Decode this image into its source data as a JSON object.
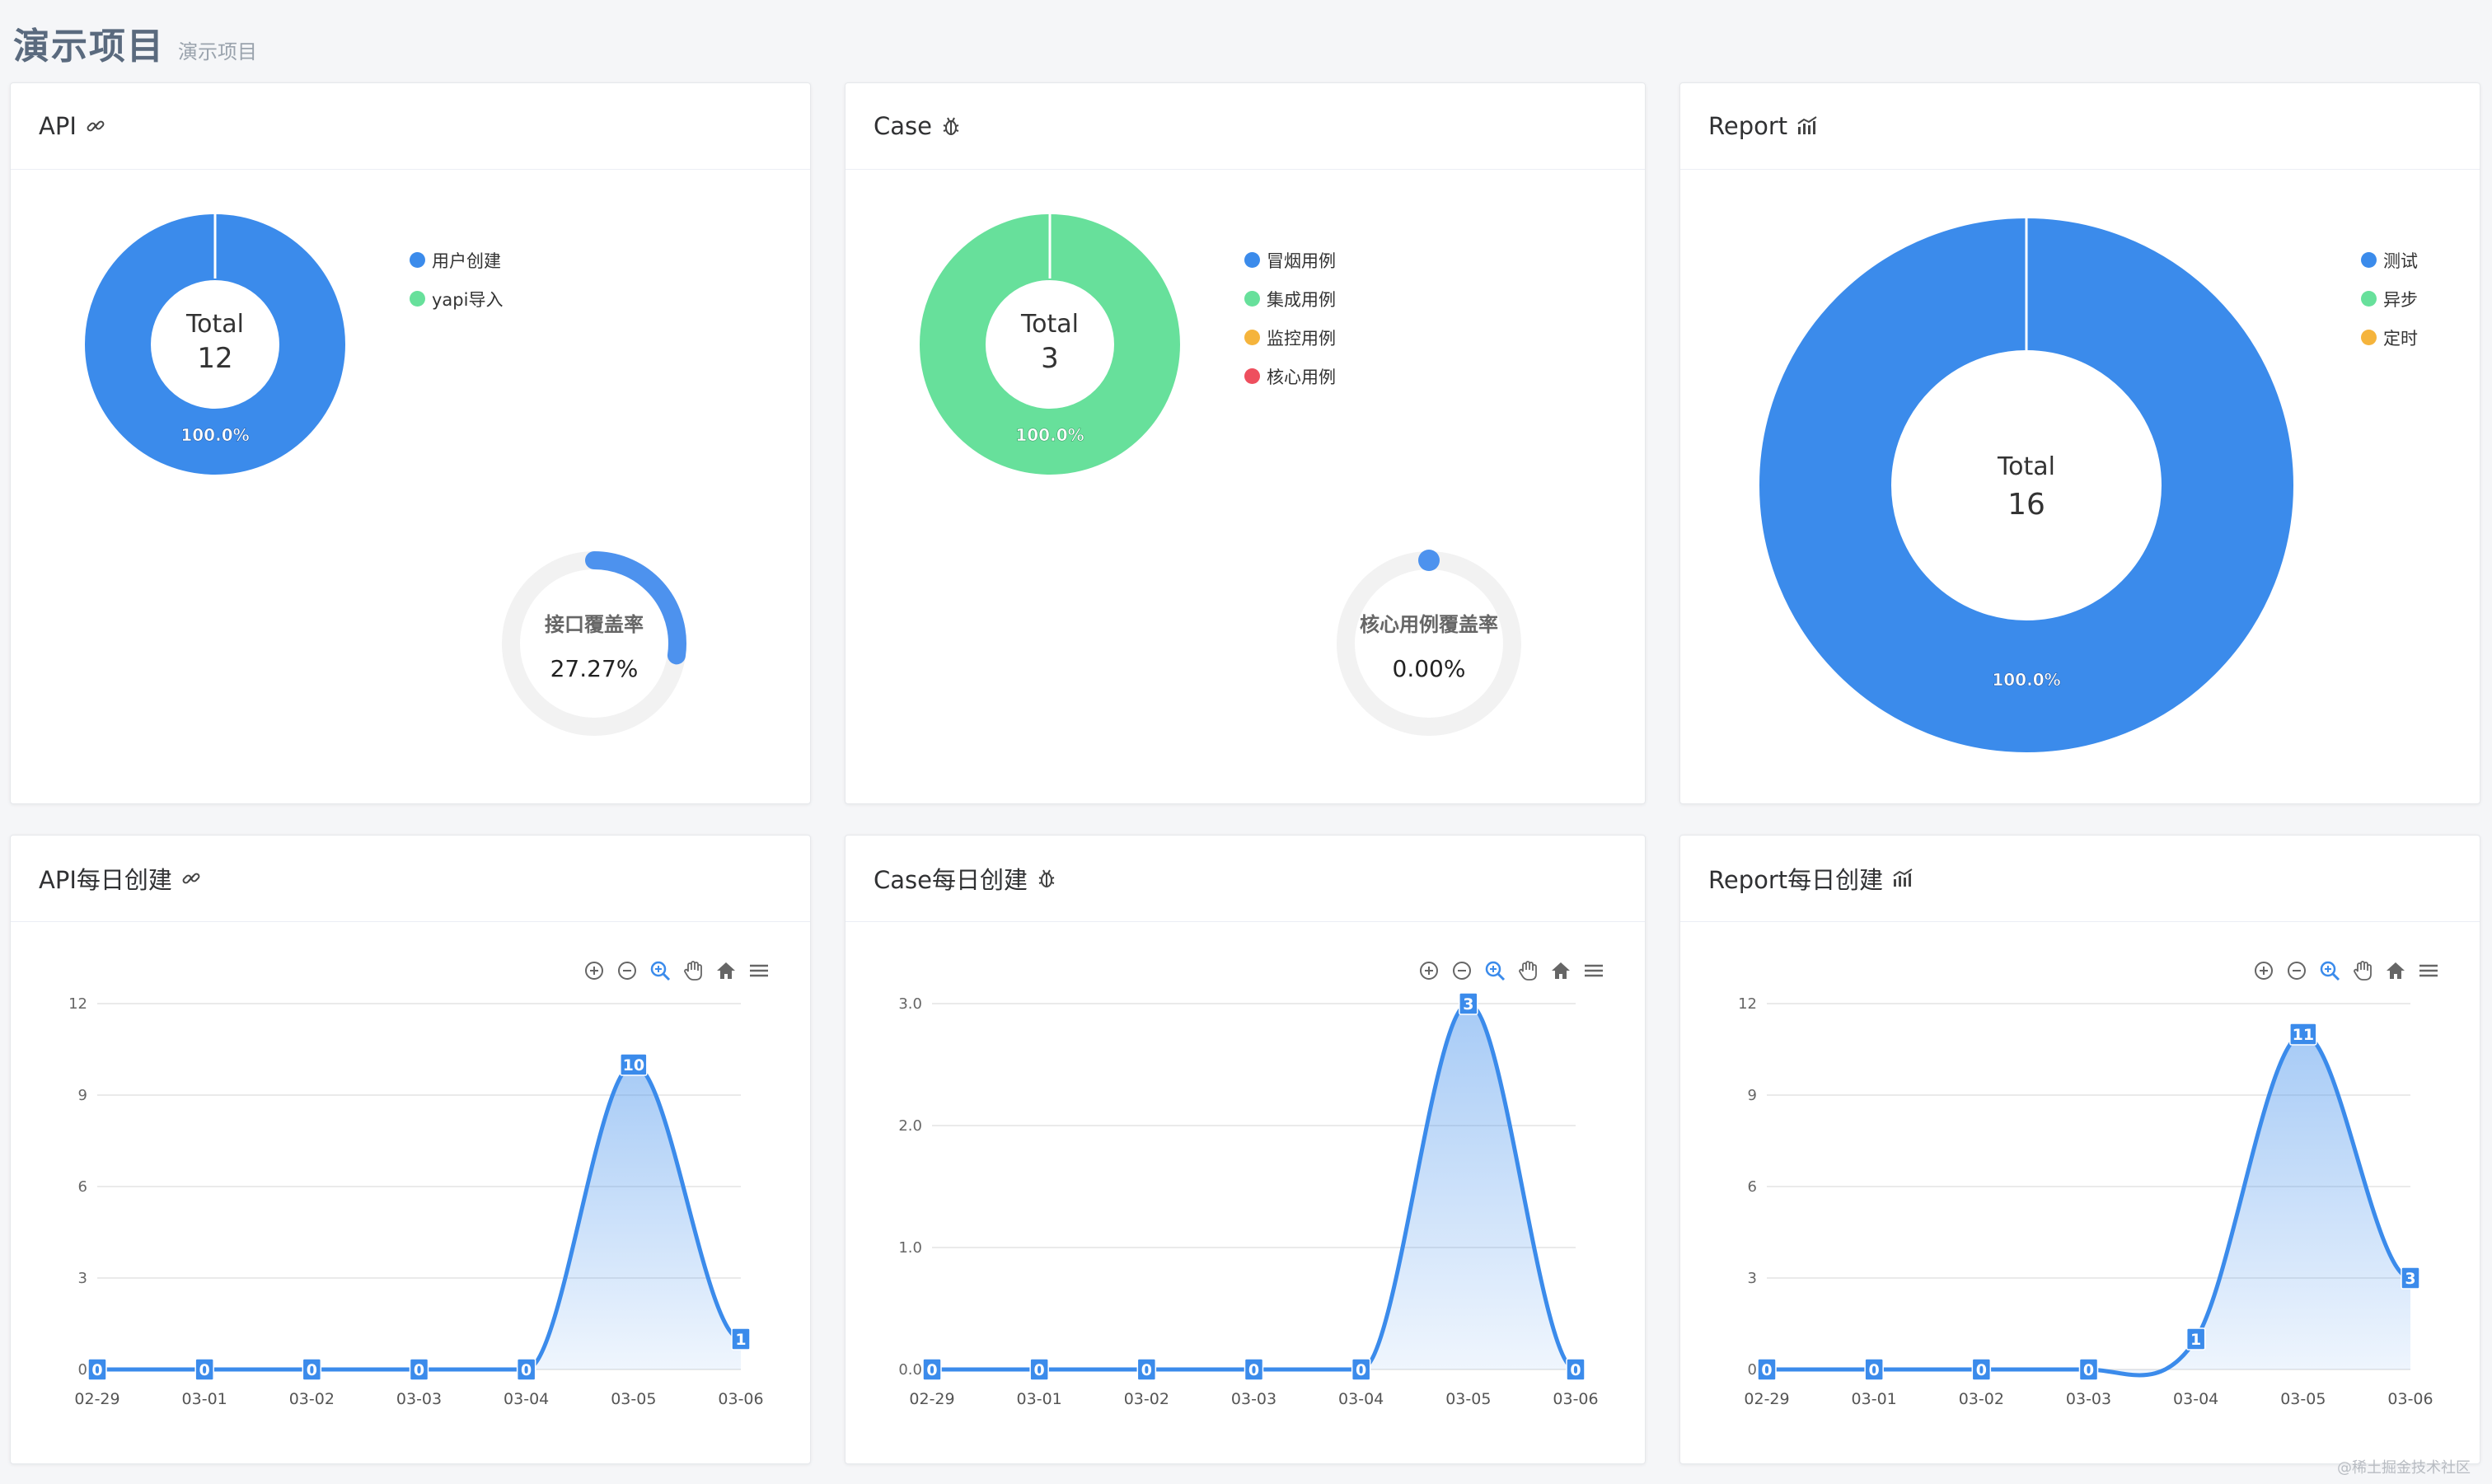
{
  "header": {
    "title": "演示项目",
    "subtitle": "演示项目"
  },
  "colors": {
    "blue": "#3b8beb",
    "green": "#67e09b",
    "orange": "#f5b43c",
    "red": "#ee4f5e",
    "ring_bg": "#f2f2f2"
  },
  "cards": {
    "api": {
      "title": "API",
      "total_label": "Total",
      "total_value": "12",
      "slice_percent": "100.0%",
      "legend": [
        "用户创建",
        "yapi导入"
      ],
      "coverage_label": "接口覆盖率",
      "coverage_value": "27.27%",
      "icon": "link-icon"
    },
    "case": {
      "title": "Case",
      "total_label": "Total",
      "total_value": "3",
      "slice_percent": "100.0%",
      "legend": [
        "冒烟用例",
        "集成用例",
        "监控用例",
        "核心用例"
      ],
      "coverage_label": "核心用例覆盖率",
      "coverage_value": "0.00%",
      "icon": "bug-icon"
    },
    "report": {
      "title": "Report",
      "total_label": "Total",
      "total_value": "16",
      "slice_percent": "100.0%",
      "legend": [
        "测试",
        "异步",
        "定时"
      ],
      "icon": "bar-chart-icon"
    },
    "api_daily": {
      "title": "API每日创建",
      "icon": "link-icon"
    },
    "case_daily": {
      "title": "Case每日创建",
      "icon": "bug-icon"
    },
    "report_daily": {
      "title": "Report每日创建",
      "icon": "bar-chart-icon"
    }
  },
  "chart_data": [
    {
      "type": "pie",
      "title": "API",
      "categories": [
        "用户创建",
        "yapi导入"
      ],
      "values": [
        12,
        0
      ],
      "center_label": "Total 12",
      "colors": [
        "#3b8beb",
        "#67e09b"
      ]
    },
    {
      "type": "pie",
      "title": "Case",
      "categories": [
        "冒烟用例",
        "集成用例",
        "监控用例",
        "核心用例"
      ],
      "values": [
        0,
        3,
        0,
        0
      ],
      "center_label": "Total 3",
      "colors": [
        "#3b8beb",
        "#67e09b",
        "#f5b43c",
        "#ee4f5e"
      ]
    },
    {
      "type": "pie",
      "title": "Report",
      "categories": [
        "测试",
        "异步",
        "定时"
      ],
      "values": [
        16,
        0,
        0
      ],
      "center_label": "Total 16",
      "colors": [
        "#3b8beb",
        "#67e09b",
        "#f5b43c"
      ]
    },
    {
      "type": "area",
      "title": "API每日创建",
      "categories": [
        "02-29",
        "03-01",
        "03-02",
        "03-03",
        "03-04",
        "03-05",
        "03-06"
      ],
      "values": [
        0,
        0,
        0,
        0,
        0,
        10,
        1
      ],
      "ylim": [
        0,
        12
      ],
      "yticks": [
        "0",
        "3",
        "6",
        "9",
        "12"
      ]
    },
    {
      "type": "area",
      "title": "Case每日创建",
      "categories": [
        "02-29",
        "03-01",
        "03-02",
        "03-03",
        "03-04",
        "03-05",
        "03-06"
      ],
      "values": [
        0,
        0,
        0,
        0,
        0,
        3,
        0
      ],
      "ylim": [
        0,
        3
      ],
      "yticks": [
        "0.0",
        "1.0",
        "2.0",
        "3.0"
      ]
    },
    {
      "type": "area",
      "title": "Report每日创建",
      "categories": [
        "02-29",
        "03-01",
        "03-02",
        "03-03",
        "03-04",
        "03-05",
        "03-06"
      ],
      "values": [
        0,
        0,
        0,
        0,
        1,
        11,
        3
      ],
      "ylim": [
        0,
        12
      ],
      "yticks": [
        "0",
        "3",
        "6",
        "9",
        "12"
      ]
    }
  ],
  "watermark": "@稀土掘金技术社区"
}
